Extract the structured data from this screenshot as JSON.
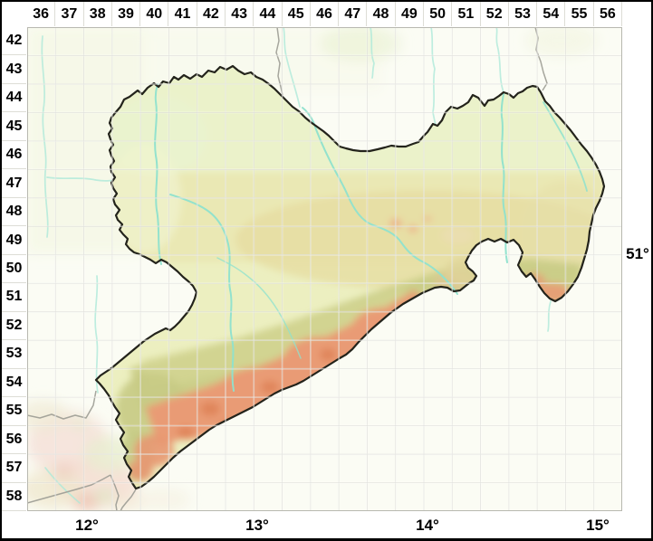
{
  "grid": {
    "columns": [
      "36",
      "37",
      "38",
      "39",
      "40",
      "41",
      "42",
      "43",
      "44",
      "45",
      "46",
      "47",
      "48",
      "49",
      "50",
      "51",
      "52",
      "53",
      "54",
      "55",
      "56"
    ],
    "rows": [
      "42",
      "43",
      "44",
      "45",
      "46",
      "47",
      "48",
      "49",
      "50",
      "51",
      "52",
      "53",
      "54",
      "55",
      "56",
      "57",
      "58"
    ],
    "lon_labels": [
      "12°",
      "13°",
      "14°",
      "15°"
    ],
    "lat_label": "51°"
  },
  "map": {
    "colors": {
      "outside_bg": "#FBFCF4",
      "outside_wash_nw": "#F3F6E2",
      "lowland": "#ECEFC0",
      "lowland_north": "#EBF2CA",
      "midland_yellow": "#EAE8B4",
      "tan": "#E5DCA0",
      "foothills_olive": "#C9CC86",
      "mountains_salmon": "#E99B74",
      "mountains_dark": "#DE8257",
      "river": "#8FE2CE",
      "river_outside": "#A9E8D8",
      "state_border": "#23231B",
      "neighbor_border": "#9C9C94",
      "map_frame": "#B8B8B0",
      "header_text": "#000000"
    }
  }
}
